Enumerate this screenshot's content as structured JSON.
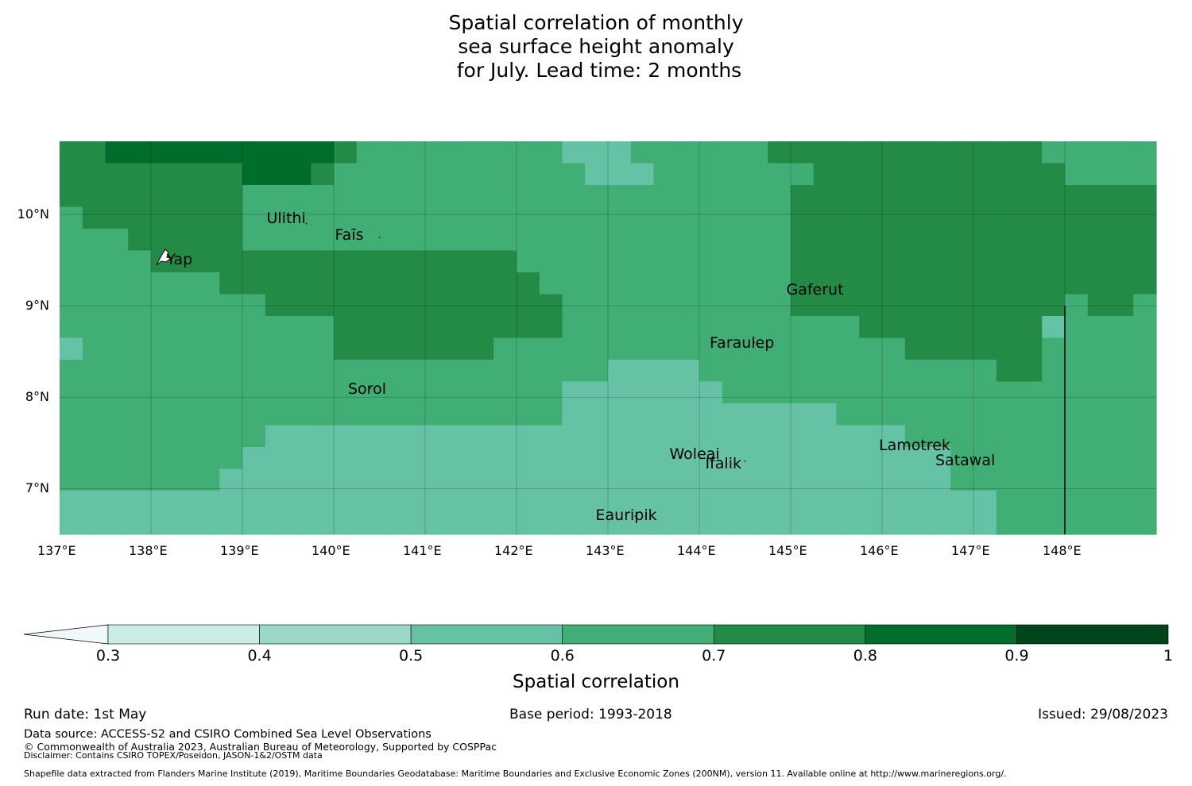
{
  "title_lines": [
    "Spatial correlation of monthly",
    "sea surface height anomaly",
    " for July. Lead time: 2 months"
  ],
  "map": {
    "lon_range": [
      137.0,
      149.0
    ],
    "lat_range": [
      6.5,
      10.8
    ],
    "lon_ticks": [
      "137°E",
      "138°E",
      "139°E",
      "140°E",
      "141°E",
      "142°E",
      "143°E",
      "144°E",
      "145°E",
      "146°E",
      "147°E",
      "148°E"
    ],
    "lat_ticks": [
      "10°N",
      "9°N",
      "8°N",
      "7°N"
    ],
    "places": [
      {
        "name": "Ulithi",
        "lon": 139.7,
        "lat": 9.9
      },
      {
        "name": "Faīs",
        "lon": 140.5,
        "lat": 9.75
      },
      {
        "name": "Yap",
        "lon": 138.1,
        "lat": 9.5
      },
      {
        "name": "Gaferut",
        "lon": 145.3,
        "lat": 9.2
      },
      {
        "name": "Faraulep",
        "lon": 144.6,
        "lat": 8.6
      },
      {
        "name": "Sorol",
        "lon": 140.4,
        "lat": 8.1
      },
      {
        "name": "Woleai",
        "lon": 143.9,
        "lat": 7.4
      },
      {
        "name": "Ifalik",
        "lon": 144.5,
        "lat": 7.3
      },
      {
        "name": "Lamotrek",
        "lon": 146.4,
        "lat": 7.5
      },
      {
        "name": "Satawal",
        "lon": 147.0,
        "lat": 7.35
      },
      {
        "name": "Eauripik",
        "lon": 143.3,
        "lat": 6.7
      }
    ],
    "grid_cols": 48,
    "grid_rows": 18,
    "cell_classes": [
      "445555555555433333333322233333344444444444433333",
      "444444445554333333333332223333333444444444443333",
      "444444443333333333333333333333334444444444444444",
      "344444443333333333333333333333334444444444444444",
      "333444443333333333333333333333334444444444444444",
      "333344444444444444443333333333334444444444444444",
      "333333344444444444444333333333334444444444444444",
      "333333333444444444444433333333334444444444443443",
      "333333333333444444444433333333333334444444423333",
      "233333333333444444433333333333333333344444433333",
      "333333333333333333333333222233333333333334433333",
      "333333333333333333333322222223333333333333333333",
      "333333333333333333333322222222222233333333333333",
      "333333333222222222222222222222222222233333333333",
      "333333332222222222222222222222222222222333333333",
      "333333322222222222222222222222222222222333333333",
      "222222222222222222222222222222222222222223333333",
      "222222222222222222222222222222222222222223333333"
    ]
  },
  "colorbar": {
    "ticks": [
      "0.3",
      "0.4",
      "0.5",
      "0.6",
      "0.7",
      "0.8",
      "0.9",
      "1"
    ],
    "colors": [
      "#ccece6",
      "#99d8c9",
      "#66c2a4",
      "#41ae76",
      "#238b45",
      "#006d2c",
      "#00441b"
    ],
    "extend_color": "#f0f9f7",
    "label": "Spatial correlation"
  },
  "footer": {
    "run_date": "Run date: 1st May",
    "base_period": "Base period: 1993-2018",
    "issued": "Issued: 29/08/2023",
    "data_source": "Data source: ACCESS-S2 and CSIRO Combined Sea Level Observations",
    "copyright": "© Commonwealth of Australia 2023, Australian Bureau of Meteorology, Supported by COSPPac",
    "disclaimer": "Disclaimer: Contains CSIRO TOPEX/Poseidon, JASON-1&2/OSTM data",
    "shapefile": "Shapefile data extracted from Flanders Marine Institute (2019), Maritime Boundaries Geodatabase: Maritime Boundaries and Exclusive Economic Zones (200NM), version 11. Available online at http://www.marineregions.org/."
  }
}
